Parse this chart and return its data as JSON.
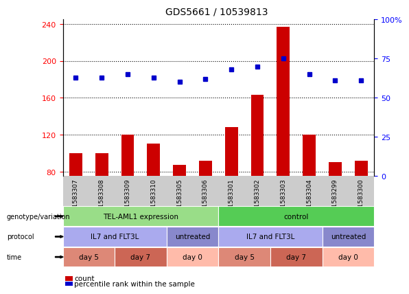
{
  "title": "GDS5661 / 10539813",
  "samples": [
    "GSM1583307",
    "GSM1583308",
    "GSM1583309",
    "GSM1583310",
    "GSM1583305",
    "GSM1583306",
    "GSM1583301",
    "GSM1583302",
    "GSM1583303",
    "GSM1583304",
    "GSM1583299",
    "GSM1583300"
  ],
  "bar_values": [
    100,
    100,
    120,
    110,
    87,
    92,
    128,
    163,
    237,
    120,
    90,
    92
  ],
  "dot_values": [
    63,
    63,
    65,
    63,
    60,
    62,
    68,
    70,
    75,
    65,
    61,
    61
  ],
  "ylim_left": [
    75,
    245
  ],
  "ylim_right": [
    0,
    100
  ],
  "yticks_left": [
    80,
    120,
    160,
    200,
    240
  ],
  "yticks_right": [
    0,
    25,
    50,
    75,
    100
  ],
  "bar_color": "#cc0000",
  "dot_color": "#0000cc",
  "plot_bg": "#ffffff",
  "row_labels": [
    "genotype/variation",
    "protocol",
    "time"
  ],
  "genotype_groups": [
    {
      "label": "TEL-AML1 expression",
      "start": 0,
      "end": 6,
      "color": "#99dd88"
    },
    {
      "label": "control",
      "start": 6,
      "end": 12,
      "color": "#55cc55"
    }
  ],
  "protocol_groups": [
    {
      "label": "IL7 and FLT3L",
      "start": 0,
      "end": 4,
      "color": "#aaaaee"
    },
    {
      "label": "untreated",
      "start": 4,
      "end": 6,
      "color": "#8888cc"
    },
    {
      "label": "IL7 and FLT3L",
      "start": 6,
      "end": 10,
      "color": "#aaaaee"
    },
    {
      "label": "untreated",
      "start": 10,
      "end": 12,
      "color": "#8888cc"
    }
  ],
  "time_groups": [
    {
      "label": "day 5",
      "start": 0,
      "end": 2,
      "color": "#dd8877"
    },
    {
      "label": "day 7",
      "start": 2,
      "end": 4,
      "color": "#cc6655"
    },
    {
      "label": "day 0",
      "start": 4,
      "end": 6,
      "color": "#ffbbaa"
    },
    {
      "label": "day 5",
      "start": 6,
      "end": 8,
      "color": "#dd8877"
    },
    {
      "label": "day 7",
      "start": 8,
      "end": 10,
      "color": "#cc6655"
    },
    {
      "label": "day 0",
      "start": 10,
      "end": 12,
      "color": "#ffbbaa"
    }
  ],
  "legend_count_color": "#cc0000",
  "legend_dot_color": "#0000cc"
}
